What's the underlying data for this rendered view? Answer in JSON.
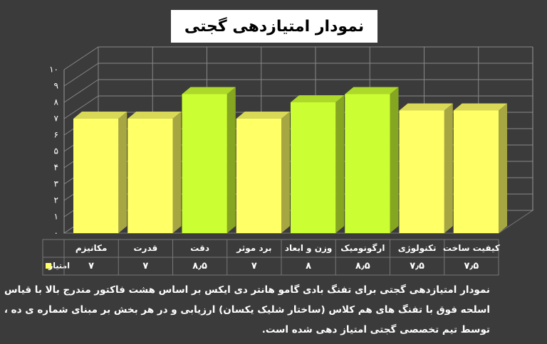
{
  "chart_data": {
    "type": "bar3d",
    "title": "نمودار امتیازدهی گجتی",
    "categories": [
      "مکانیزم",
      "قدرت",
      "دقت",
      "برد موثر",
      "وزن و ابعاد",
      "ارگونومیک",
      "تکنولوژی",
      "کیفیت ساخت"
    ],
    "series": [
      {
        "name": "امتیاز",
        "color": "#ffff66",
        "values": [
          7,
          7,
          8.5,
          7,
          8,
          8.5,
          7.5,
          7.5
        ],
        "value_labels": [
          "۷",
          "۷",
          "۸٫۵",
          "۷",
          "۸",
          "۸٫۵",
          "۷٫۵",
          "۷٫۵"
        ],
        "colors": [
          "#ffff66",
          "#ffff66",
          "#ccff33",
          "#ffff66",
          "#ccff33",
          "#ccff33",
          "#ffff66",
          "#ffff66"
        ]
      }
    ],
    "ylim": [
      0,
      10
    ],
    "yticks": [
      {
        "value": 0,
        "label": "۰"
      },
      {
        "value": 1,
        "label": "۱"
      },
      {
        "value": 2,
        "label": "۲"
      },
      {
        "value": 3,
        "label": "۳"
      },
      {
        "value": 4,
        "label": "۴"
      },
      {
        "value": 5,
        "label": "۵"
      },
      {
        "value": 6,
        "label": "۶"
      },
      {
        "value": 7,
        "label": "۷"
      },
      {
        "value": 8,
        "label": "۸"
      },
      {
        "value": 9,
        "label": "۹"
      },
      {
        "value": 10,
        "label": "۱۰"
      }
    ],
    "grid": true,
    "caption": [
      "نمودار امتیازدهی گجتی برای تفنگ بادی گامو هانتر دی ایکس بر اساس هشت فاکتور مندرج بالا با قیاس",
      "اسلحه فوق با تفنگ های هم کلاس (ساختار شلیک یکسان) ارزیابی و در هر بخش بر مبنای شماره ی ده ،",
      "توسط تیم تخصصی گجتی امتیاز دهی شده است."
    ]
  }
}
